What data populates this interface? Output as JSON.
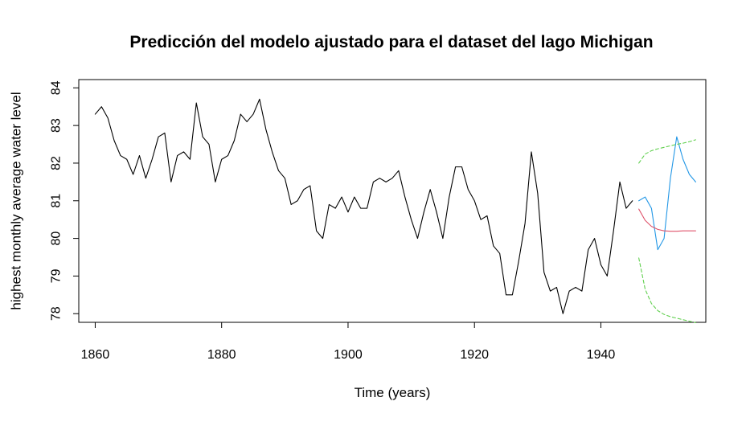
{
  "chart_data": {
    "type": "line",
    "title": "Predicción del modelo ajustado para el dataset del lago Michigan",
    "xlabel": "Time (years)",
    "ylabel": "highest monthly average water level",
    "xlim": [
      1857.4,
      1956.6
    ],
    "ylim": [
      77.77,
      84.22
    ],
    "xticks": [
      "1860",
      "1880",
      "1900",
      "1920",
      "1940"
    ],
    "yticks": [
      "78",
      "79",
      "80",
      "81",
      "82",
      "83",
      "84"
    ],
    "grid": false,
    "legend": "none",
    "series": [
      {
        "role": "observed",
        "color": "#000000",
        "dash": "solid",
        "x": [
          1860,
          1861,
          1862,
          1863,
          1864,
          1865,
          1866,
          1867,
          1868,
          1869,
          1870,
          1871,
          1872,
          1873,
          1874,
          1875,
          1876,
          1877,
          1878,
          1879,
          1880,
          1881,
          1882,
          1883,
          1884,
          1885,
          1886,
          1887,
          1888,
          1889,
          1890,
          1891,
          1892,
          1893,
          1894,
          1895,
          1896,
          1897,
          1898,
          1899,
          1900,
          1901,
          1902,
          1903,
          1904,
          1905,
          1906,
          1907,
          1908,
          1909,
          1910,
          1911,
          1912,
          1913,
          1914,
          1915,
          1916,
          1917,
          1918,
          1919,
          1920,
          1921,
          1922,
          1923,
          1924,
          1925,
          1926,
          1927,
          1928,
          1929,
          1930,
          1931,
          1932,
          1933,
          1934,
          1935,
          1936,
          1937,
          1938,
          1939,
          1940,
          1941,
          1942,
          1943,
          1944,
          1945
        ],
        "y": [
          83.3,
          83.5,
          83.2,
          82.6,
          82.2,
          82.1,
          81.7,
          82.2,
          81.6,
          82.1,
          82.7,
          82.8,
          81.5,
          82.2,
          82.3,
          82.1,
          83.6,
          82.7,
          82.5,
          81.5,
          82.1,
          82.2,
          82.6,
          83.3,
          83.1,
          83.3,
          83.7,
          82.9,
          82.3,
          81.8,
          81.6,
          80.9,
          81.0,
          81.3,
          81.4,
          80.2,
          80.0,
          80.9,
          80.8,
          81.1,
          80.7,
          81.1,
          80.8,
          80.8,
          81.5,
          81.6,
          81.5,
          81.6,
          81.8,
          81.1,
          80.5,
          80.0,
          80.7,
          81.3,
          80.7,
          80.0,
          81.1,
          81.9,
          81.9,
          81.3,
          81.0,
          80.5,
          80.6,
          79.8,
          79.6,
          78.5,
          78.5,
          79.4,
          80.4,
          82.3,
          81.2,
          79.1,
          78.6,
          78.7,
          78.0,
          78.6,
          78.7,
          78.6,
          79.7,
          80.0,
          79.3,
          79.0,
          80.2,
          81.5,
          80.8,
          81.0
        ]
      },
      {
        "role": "actual-test",
        "color": "#2297E6",
        "dash": "solid",
        "x": [
          1946,
          1947,
          1948,
          1949,
          1950,
          1951,
          1952,
          1953,
          1954,
          1955
        ],
        "y": [
          81.0,
          81.1,
          80.8,
          79.7,
          80.0,
          81.6,
          82.7,
          82.1,
          81.7,
          81.5
        ]
      },
      {
        "role": "prediction",
        "color": "#DF536B",
        "dash": "solid",
        "x": [
          1946,
          1947,
          1948,
          1949,
          1950,
          1951,
          1952,
          1953,
          1954,
          1955
        ],
        "y": [
          80.78,
          80.48,
          80.32,
          80.24,
          80.2,
          80.19,
          80.19,
          80.2,
          80.2,
          80.2
        ]
      },
      {
        "role": "upper-bound",
        "color": "#61D04F",
        "dash": "dashed",
        "x": [
          1946,
          1947,
          1948,
          1949,
          1950,
          1951,
          1952,
          1953,
          1954,
          1955
        ],
        "y": [
          82.0,
          82.24,
          82.33,
          82.38,
          82.42,
          82.46,
          82.5,
          82.53,
          82.57,
          82.62
        ]
      },
      {
        "role": "lower-bound",
        "color": "#61D04F",
        "dash": "dashed",
        "x": [
          1946,
          1947,
          1948,
          1949,
          1950,
          1951,
          1952,
          1953,
          1954,
          1955
        ],
        "y": [
          79.48,
          78.65,
          78.27,
          78.08,
          77.98,
          77.92,
          77.88,
          77.84,
          77.8,
          77.76
        ]
      }
    ]
  }
}
